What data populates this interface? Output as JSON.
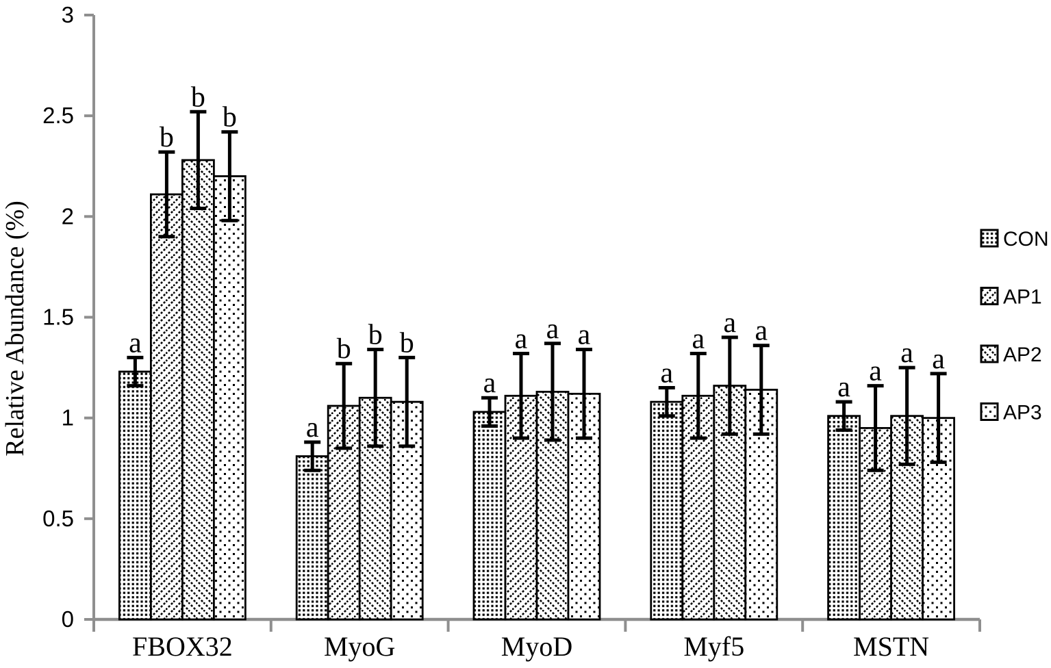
{
  "figure": {
    "background": "#ffffff"
  },
  "chart_data": {
    "type": "bar",
    "title": "",
    "xlabel": "",
    "ylabel": "Relative Abundance (%)",
    "ylim": [
      0,
      3
    ],
    "yticks": [
      0,
      0.5,
      1,
      1.5,
      2,
      2.5,
      3
    ],
    "grid": false,
    "legend_position": "right",
    "categories": [
      "FBOX32",
      "MyoG",
      "MyoD",
      "Myf5",
      "MSTN"
    ],
    "series": [
      {
        "name": "CON",
        "pattern": "dense-dot-grid",
        "values": [
          1.23,
          0.81,
          1.03,
          1.08,
          1.01
        ],
        "errors": [
          0.07,
          0.07,
          0.07,
          0.07,
          0.07
        ],
        "letters": [
          "a",
          "a",
          "a",
          "a",
          "a"
        ]
      },
      {
        "name": "AP1",
        "pattern": "diagonal-forward",
        "values": [
          2.11,
          1.06,
          1.11,
          1.11,
          0.95
        ],
        "errors": [
          0.21,
          0.21,
          0.21,
          0.21,
          0.21
        ],
        "letters": [
          "b",
          "b",
          "a",
          "a",
          "a"
        ]
      },
      {
        "name": "AP2",
        "pattern": "diagonal-back",
        "values": [
          2.28,
          1.1,
          1.13,
          1.16,
          1.01
        ],
        "errors": [
          0.24,
          0.24,
          0.24,
          0.24,
          0.24
        ],
        "letters": [
          "b",
          "b",
          "a",
          "a",
          "a"
        ]
      },
      {
        "name": "AP3",
        "pattern": "sparse-dots",
        "values": [
          2.2,
          1.08,
          1.12,
          1.14,
          1.0
        ],
        "errors": [
          0.22,
          0.22,
          0.22,
          0.22,
          0.22
        ],
        "letters": [
          "b",
          "b",
          "a",
          "a",
          "a"
        ]
      }
    ],
    "colors": {
      "bar_fill": "#ffffff",
      "bar_stroke": "#000000",
      "error_bar": "#000000",
      "axis": "#8f8f8f",
      "text": "#000000"
    }
  }
}
